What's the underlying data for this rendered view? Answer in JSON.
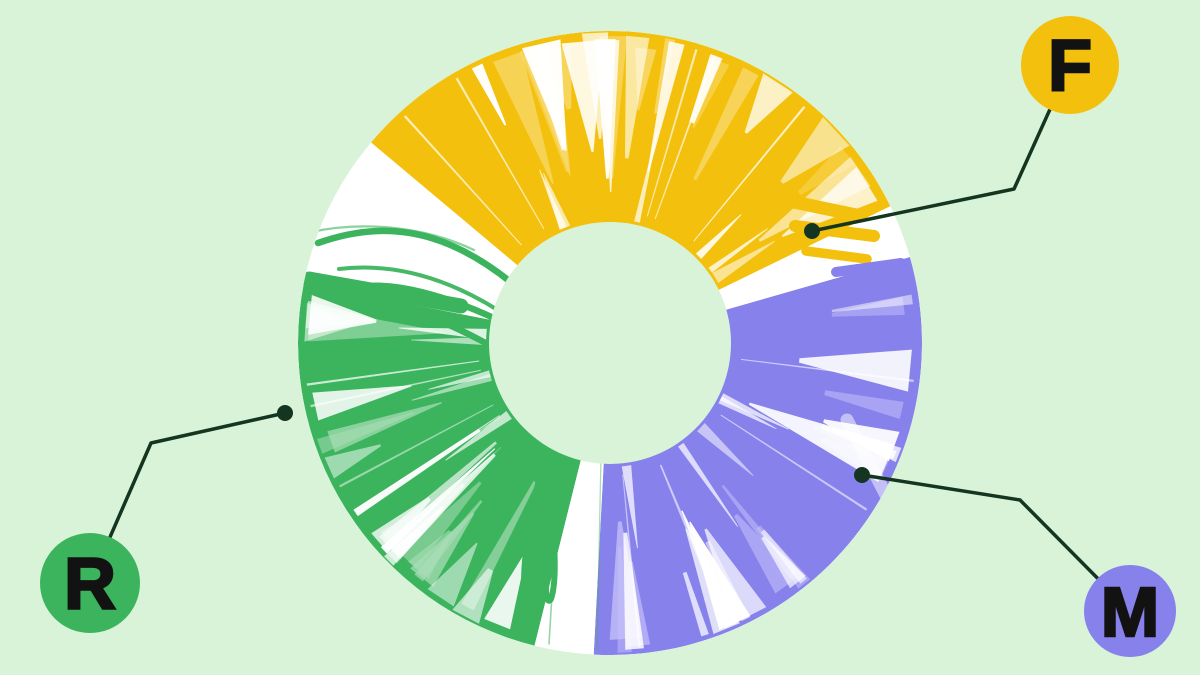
{
  "background_color": "#D9F3D9",
  "connector_color": "#14351F",
  "chart_data": {
    "type": "pie",
    "subtype": "donut",
    "style": "hand-drawn scribble illustration, no axes, no numeric labels",
    "categories": [
      "F",
      "M",
      "R"
    ],
    "segments": [
      {
        "label": "F",
        "color": "#F3C10D",
        "tint": "#F9DD7E",
        "start_deg": 310,
        "sweep_deg": 114,
        "estimated_percent": 32
      },
      {
        "label": "M",
        "color": "#8781EC",
        "tint": "#C9C5F8",
        "start_deg": 74,
        "sweep_deg": 109,
        "estimated_percent": 30
      },
      {
        "label": "R",
        "color": "#3CB45E",
        "tint": "#A9DDB6",
        "start_deg": 194,
        "sweep_deg": 87,
        "estimated_percent": 24
      }
    ],
    "gaps_percent": 14,
    "ring_base_color": "#FFFFFF",
    "hole_color": "#D9F3D9",
    "legend_position": "external-callout-badges"
  },
  "callouts": [
    {
      "label": "F",
      "badge_color": "#F3C10D",
      "letter_color": "#121212"
    },
    {
      "label": "R",
      "badge_color": "#3CB45E",
      "letter_color": "#121212"
    },
    {
      "label": "M",
      "badge_color": "#8781EC",
      "letter_color": "#121212"
    }
  ]
}
